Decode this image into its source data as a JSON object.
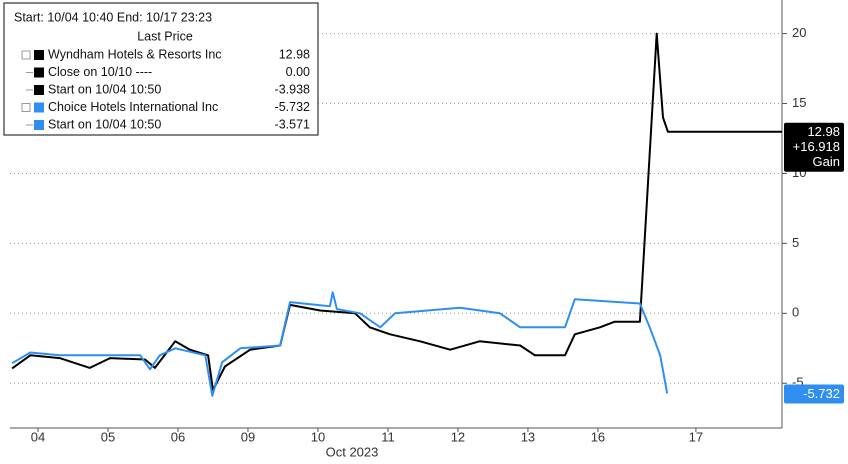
{
  "chart_data": {
    "type": "line",
    "x_axis_label": "Oct 2023",
    "xlim": [
      0,
      11.03
    ],
    "xticks": [
      {
        "value": 0.4,
        "label": "04"
      },
      {
        "value": 1.4,
        "label": "05"
      },
      {
        "value": 2.4,
        "label": "06"
      },
      {
        "value": 3.4,
        "label": "09"
      },
      {
        "value": 4.4,
        "label": "10"
      },
      {
        "value": 5.4,
        "label": "11"
      },
      {
        "value": 6.4,
        "label": "12"
      },
      {
        "value": 7.4,
        "label": "13"
      },
      {
        "value": 8.4,
        "label": "16"
      },
      {
        "value": 9.8,
        "label": "17"
      }
    ],
    "ylim": [
      -8.2,
      22.4
    ],
    "yticks": [
      -5,
      0,
      5,
      10,
      15,
      20
    ],
    "grid": true,
    "legend": {
      "header": "Start: 10/04 10:40 End: 10/17 23:23",
      "subheader": "Last Price",
      "rows": [
        {
          "label": "Wyndham Hotels & Resorts Inc",
          "value": "12.98",
          "color": "#000000",
          "indent": false
        },
        {
          "label": "Close on 10/10 ----",
          "value": "0.00",
          "color": "#000000",
          "indent": true
        },
        {
          "label": "Start on 10/04 10:50",
          "value": "-3.938",
          "color": "#000000",
          "indent": true
        },
        {
          "label": "Choice Hotels International Inc",
          "value": "-5.732",
          "color": "#2f8ff0",
          "indent": false
        },
        {
          "label": "Start on 10/04 10:50",
          "value": "-3.571",
          "color": "#2f8ff0",
          "indent": true
        }
      ]
    },
    "series": [
      {
        "name": "Wyndham Hotels & Resorts Inc",
        "color": "#000000",
        "x": [
          0.03,
          0.29,
          0.71,
          1.14,
          1.43,
          1.93,
          2.07,
          2.36,
          2.57,
          2.83,
          2.9,
          3.07,
          3.43,
          3.86,
          4.0,
          4.43,
          4.93,
          5.14,
          5.43,
          5.86,
          6.29,
          6.71,
          7.29,
          7.5,
          7.93,
          8.07,
          8.43,
          8.64,
          9.0,
          9.24,
          9.33,
          9.4,
          11.03
        ],
        "values": [
          -3.94,
          -3.0,
          -3.2,
          -3.9,
          -3.2,
          -3.3,
          -3.9,
          -2.0,
          -2.6,
          -3.0,
          -5.5,
          -3.8,
          -2.6,
          -2.3,
          0.6,
          0.2,
          0.0,
          -1.0,
          -1.5,
          -2.0,
          -2.6,
          -2.0,
          -2.3,
          -3.0,
          -3.0,
          -1.5,
          -1.0,
          -0.6,
          -0.6,
          20.0,
          14.0,
          12.98,
          12.98
        ],
        "tag": [
          "12.98",
          "+16.918",
          "Gain"
        ]
      },
      {
        "name": "Choice Hotels International Inc",
        "color": "#2f8ff0",
        "x": [
          0.03,
          0.29,
          0.71,
          1.86,
          2.0,
          2.14,
          2.36,
          2.79,
          2.89,
          3.03,
          3.29,
          3.86,
          4.0,
          4.57,
          4.61,
          4.67,
          5.0,
          5.29,
          5.5,
          6.43,
          7.0,
          7.29,
          7.93,
          8.07,
          9.0,
          9.14,
          9.29,
          9.39
        ],
        "values": [
          -3.57,
          -2.8,
          -3.0,
          -3.0,
          -4.0,
          -3.0,
          -2.5,
          -3.0,
          -5.9,
          -3.5,
          -2.5,
          -2.3,
          0.8,
          0.5,
          1.5,
          0.3,
          0.0,
          -1.0,
          0.0,
          0.4,
          0.0,
          -1.0,
          -1.0,
          1.0,
          0.7,
          -1.0,
          -3.0,
          -5.73
        ],
        "tag": [
          "-5.732"
        ]
      }
    ]
  }
}
